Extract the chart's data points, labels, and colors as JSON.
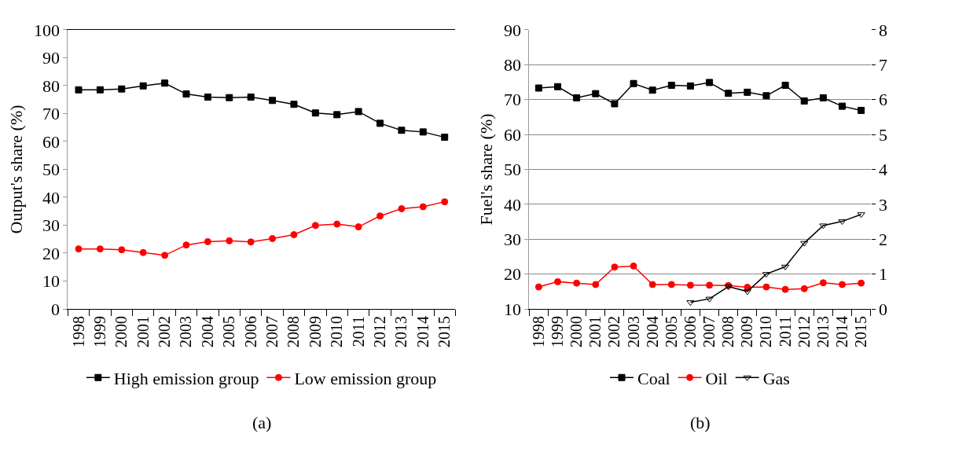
{
  "chart_data": [
    {
      "type": "line",
      "ylabel": "Output's share (%)",
      "categories": [
        "1998",
        "1999",
        "2000",
        "2001",
        "2002",
        "2003",
        "2004",
        "2005",
        "2006",
        "2007",
        "2008",
        "2009",
        "2010",
        "2011",
        "2012",
        "2013",
        "2014",
        "2015"
      ],
      "ylim": [
        0,
        100
      ],
      "yticks": [
        0,
        10,
        20,
        30,
        40,
        50,
        60,
        70,
        80,
        90,
        100
      ],
      "grid": false,
      "legend": "bottom",
      "annotations": [
        "(a)"
      ],
      "series": [
        {
          "name": "High emission group",
          "color": "#000000",
          "marker": "square",
          "values": [
            78.5,
            78.5,
            78.8,
            79.9,
            80.9,
            77.0,
            75.9,
            75.7,
            75.9,
            74.7,
            73.3,
            70.2,
            69.6,
            70.7,
            66.5,
            64.0,
            63.4,
            61.5
          ]
        },
        {
          "name": "Low emission group",
          "color": "#ff0000",
          "marker": "circle",
          "values": [
            21.5,
            21.5,
            21.2,
            20.2,
            19.2,
            22.9,
            24.1,
            24.4,
            24.0,
            25.2,
            26.6,
            29.9,
            30.4,
            29.4,
            33.3,
            35.9,
            36.6,
            38.4
          ]
        }
      ]
    },
    {
      "type": "line",
      "ylabel": "Fuel's share (%)",
      "categories": [
        "1998",
        "1999",
        "2000",
        "2001",
        "2002",
        "2003",
        "2004",
        "2005",
        "2006",
        "2007",
        "2008",
        "2009",
        "2010",
        "2011",
        "2012",
        "2013",
        "2014",
        "2015"
      ],
      "ylim": [
        10,
        90
      ],
      "yticks": [
        10,
        20,
        30,
        40,
        50,
        60,
        70,
        80,
        90
      ],
      "y2lim": [
        0,
        8
      ],
      "y2ticks": [
        0,
        1,
        2,
        3,
        4,
        5,
        6,
        7,
        8
      ],
      "grid": "y",
      "legend": "bottom",
      "annotations": [
        "(b)"
      ],
      "series": [
        {
          "name": "Coal",
          "color": "#000000",
          "marker": "square",
          "values": [
            73.3,
            73.7,
            70.5,
            71.7,
            68.8,
            74.6,
            72.7,
            74.1,
            73.9,
            74.9,
            71.8,
            72.1,
            71.1,
            74.1,
            69.6,
            70.5,
            68.1,
            66.9
          ]
        },
        {
          "name": "Oil",
          "color": "#ff0000",
          "marker": "circle",
          "values": [
            16.3,
            17.8,
            17.4,
            17.0,
            22.0,
            22.3,
            17.0,
            17.0,
            16.8,
            16.8,
            16.7,
            16.2,
            16.3,
            15.6,
            15.8,
            17.5,
            17.0,
            17.4
          ]
        },
        {
          "name": "Gas",
          "color": "#000000",
          "marker": "triangle",
          "axis": "y2",
          "values": [
            null,
            null,
            null,
            null,
            null,
            null,
            null,
            null,
            0.19,
            0.29,
            0.64,
            0.5,
            1.0,
            1.21,
            1.89,
            2.39,
            2.51,
            2.71
          ]
        }
      ]
    }
  ]
}
